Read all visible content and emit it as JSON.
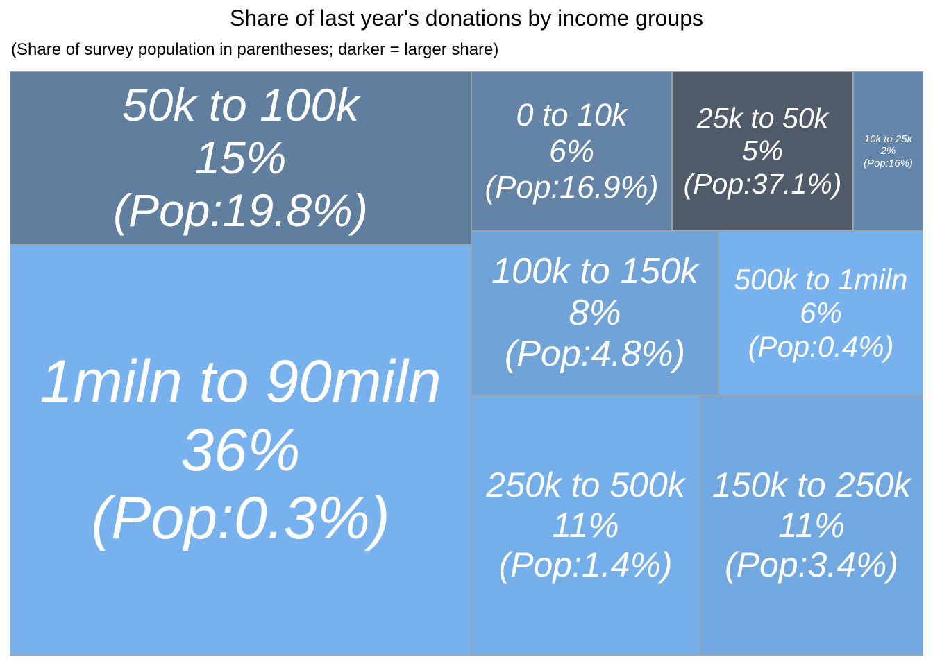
{
  "title": "Share of last year's donations by income groups",
  "subtitle": "(Share of survey population in parentheses; darker = larger share)",
  "chart_data": {
    "type": "treemap",
    "value_label": "Share of last year's donations",
    "tiles": [
      {
        "id": "t50k100k",
        "group": "50k to 100k",
        "share_label": "15%",
        "pop_label": "(Pop:19.8%)",
        "share": 15,
        "pop": 19.8,
        "color": "#607e9e"
      },
      {
        "id": "t0to10k",
        "group": "0 to 10k",
        "share_label": "6%",
        "pop_label": "(Pop:16.9%)",
        "share": 6,
        "pop": 16.9,
        "color": "#6384a6"
      },
      {
        "id": "t25k50k",
        "group": "25k to 50k",
        "share_label": "5%",
        "pop_label": "(Pop:37.1%)",
        "share": 5,
        "pop": 37.1,
        "color": "#505b6a"
      },
      {
        "id": "t10k25k",
        "group": "10k to 25k",
        "share_label": "2%",
        "pop_label": "(Pop:16%)",
        "share": 2,
        "pop": 16,
        "color": "#6486ab"
      },
      {
        "id": "t1m90m",
        "group": "1miln to 90miln",
        "share_label": "36%",
        "pop_label": "(Pop:0.3%)",
        "share": 36,
        "pop": 0.3,
        "color": "#77b2ee"
      },
      {
        "id": "t100k150k",
        "group": "100k to 150k",
        "share_label": "8%",
        "pop_label": "(Pop:4.8%)",
        "share": 8,
        "pop": 4.8,
        "color": "#70a3d8"
      },
      {
        "id": "t500k1m",
        "group": "500k to 1miln",
        "share_label": "6%",
        "pop_label": "(Pop:0.4%)",
        "share": 6,
        "pop": 0.4,
        "color": "#77b2ee"
      },
      {
        "id": "t250k500k",
        "group": "250k to 500k",
        "share_label": "11%",
        "pop_label": "(Pop:1.4%)",
        "share": 11,
        "pop": 1.4,
        "color": "#75afea"
      },
      {
        "id": "t150k250k",
        "group": "150k to 250k",
        "share_label": "11%",
        "pop_label": "(Pop:3.4%)",
        "share": 11,
        "pop": 3.4,
        "color": "#72a8e0"
      }
    ]
  }
}
